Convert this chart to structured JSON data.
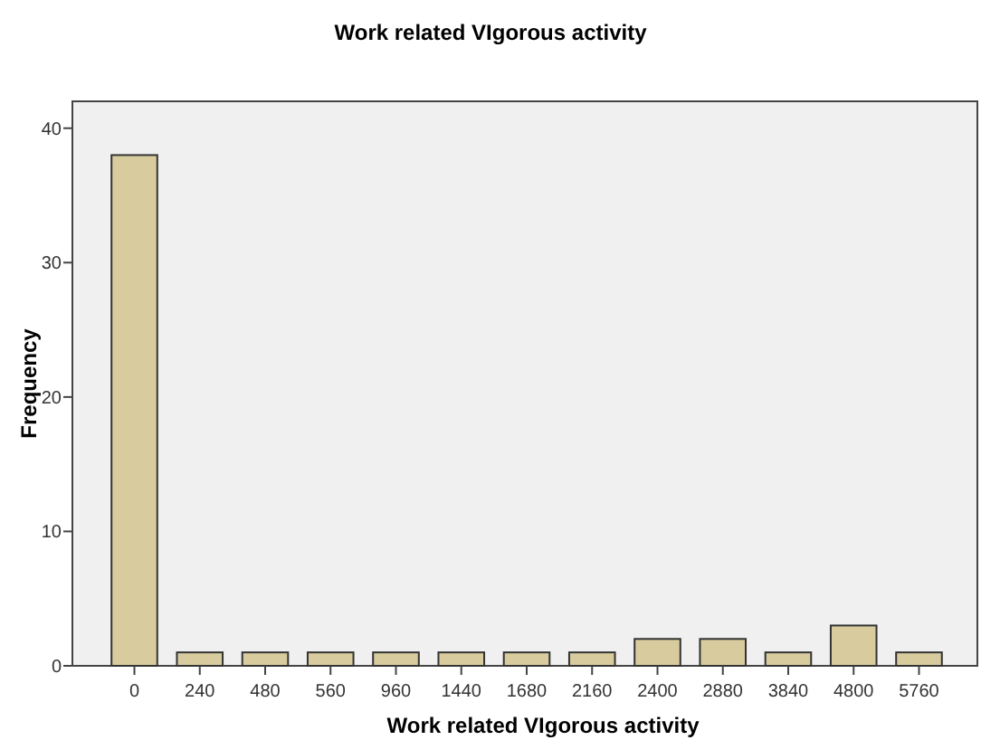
{
  "chart_data": {
    "type": "bar",
    "title": "Work related VIgorous activity",
    "xlabel": "Work related VIgorous activity",
    "ylabel": "Frequency",
    "categories": [
      "0",
      "240",
      "480",
      "560",
      "960",
      "1440",
      "1680",
      "2160",
      "2400",
      "2880",
      "3840",
      "4800",
      "5760"
    ],
    "values": [
      38,
      1,
      1,
      1,
      1,
      1,
      1,
      1,
      2,
      2,
      1,
      3,
      1
    ],
    "color": "#d8cc9e",
    "ylim": [
      0,
      42
    ],
    "yticks": [
      0,
      10,
      20,
      30,
      40
    ],
    "grid": false
  }
}
